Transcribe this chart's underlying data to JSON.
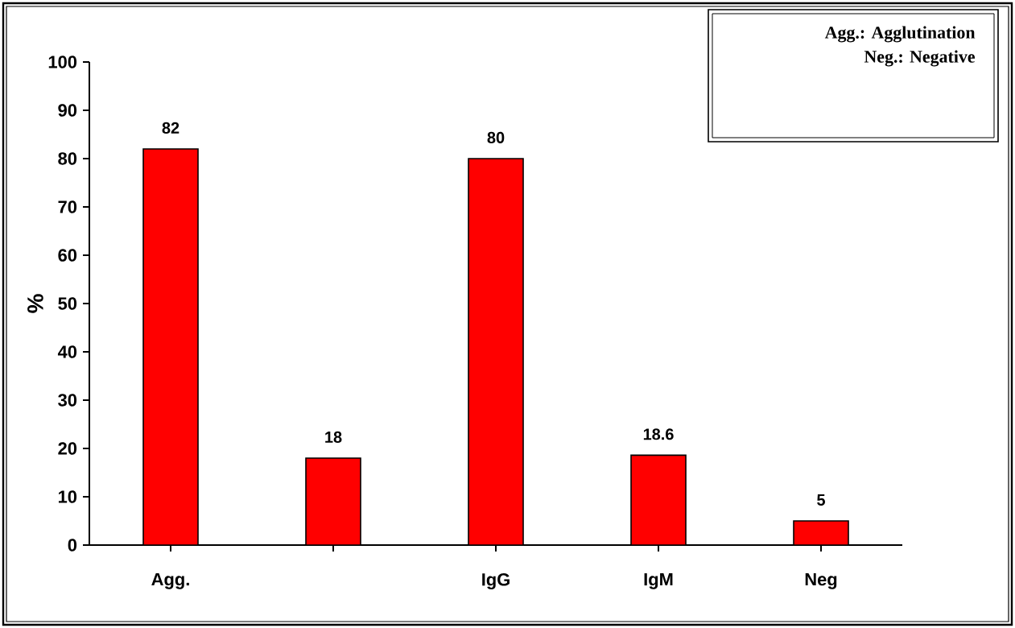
{
  "chart_data": {
    "type": "bar",
    "ylabel": "%",
    "categories": [
      "Agg.",
      null,
      "IgG",
      "IgM",
      "Neg"
    ],
    "values": [
      82,
      18,
      80,
      18.6,
      5
    ],
    "color": "#ff0000",
    "ylim": [
      0,
      100
    ],
    "yticks": [
      0,
      10,
      20,
      30,
      40,
      50,
      60,
      70,
      80,
      90,
      100
    ],
    "data_labels": true,
    "grid": false,
    "annotations": [
      "Agg.: Agglutination",
      "Neg.: Negative"
    ]
  }
}
